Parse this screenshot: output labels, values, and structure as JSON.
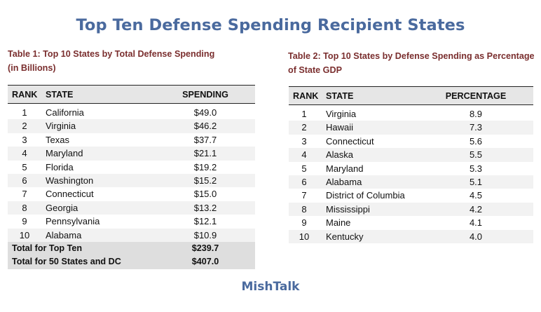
{
  "page": {
    "title": "Top Ten Defense Spending Recipient States",
    "footer": "MishTalk"
  },
  "table1": {
    "caption_line1": "Table 1: Top 10 States by Total Defense Spending",
    "caption_line2": "(in Billions)",
    "headers": {
      "rank": "RANK",
      "state": "STATE",
      "value": "SPENDING"
    },
    "rows": [
      {
        "rank": "1",
        "state": "California",
        "value": "$49.0"
      },
      {
        "rank": "2",
        "state": "Virginia",
        "value": "$46.2"
      },
      {
        "rank": "3",
        "state": "Texas",
        "value": "$37.7"
      },
      {
        "rank": "4",
        "state": "Maryland",
        "value": "$21.1"
      },
      {
        "rank": "5",
        "state": "Florida",
        "value": "$19.2"
      },
      {
        "rank": "6",
        "state": "Washington",
        "value": "$15.2"
      },
      {
        "rank": "7",
        "state": "Connecticut",
        "value": "$15.0"
      },
      {
        "rank": "8",
        "state": "Georgia",
        "value": "$13.2"
      },
      {
        "rank": "9",
        "state": "Pennsylvania",
        "value": "$12.1"
      },
      {
        "rank": "10",
        "state": "Alabama",
        "value": "$10.9"
      }
    ],
    "totals": [
      {
        "label": "Total for Top Ten",
        "value": "$239.7"
      },
      {
        "label": "Total for 50 States and DC",
        "value": "$407.0"
      }
    ]
  },
  "table2": {
    "caption_line1": "Table 2: Top 10 States by Defense Spending as Percentage",
    "caption_line2": "of State GDP",
    "headers": {
      "rank": "RANK",
      "state": "STATE",
      "value": "PERCENTAGE"
    },
    "rows": [
      {
        "rank": "1",
        "state": "Virginia",
        "value": "8.9"
      },
      {
        "rank": "2",
        "state": "Hawaii",
        "value": "7.3"
      },
      {
        "rank": "3",
        "state": "Connecticut",
        "value": "5.6"
      },
      {
        "rank": "4",
        "state": "Alaska",
        "value": "5.5"
      },
      {
        "rank": "5",
        "state": "Maryland",
        "value": "5.3"
      },
      {
        "rank": "6",
        "state": "Alabama",
        "value": "5.1"
      },
      {
        "rank": "7",
        "state": "District of Columbia",
        "value": "4.5"
      },
      {
        "rank": "8",
        "state": "Mississippi",
        "value": "4.2"
      },
      {
        "rank": "9",
        "state": "Maine",
        "value": "4.1"
      },
      {
        "rank": "10",
        "state": "Kentucky",
        "value": "4.0"
      }
    ]
  },
  "colors": {
    "title": "#4a6a9e",
    "caption": "#7a2e2e",
    "header_bg": "#e6e6e6",
    "stripe_bg": "#f2f2f2",
    "total_bg": "#dedede"
  }
}
